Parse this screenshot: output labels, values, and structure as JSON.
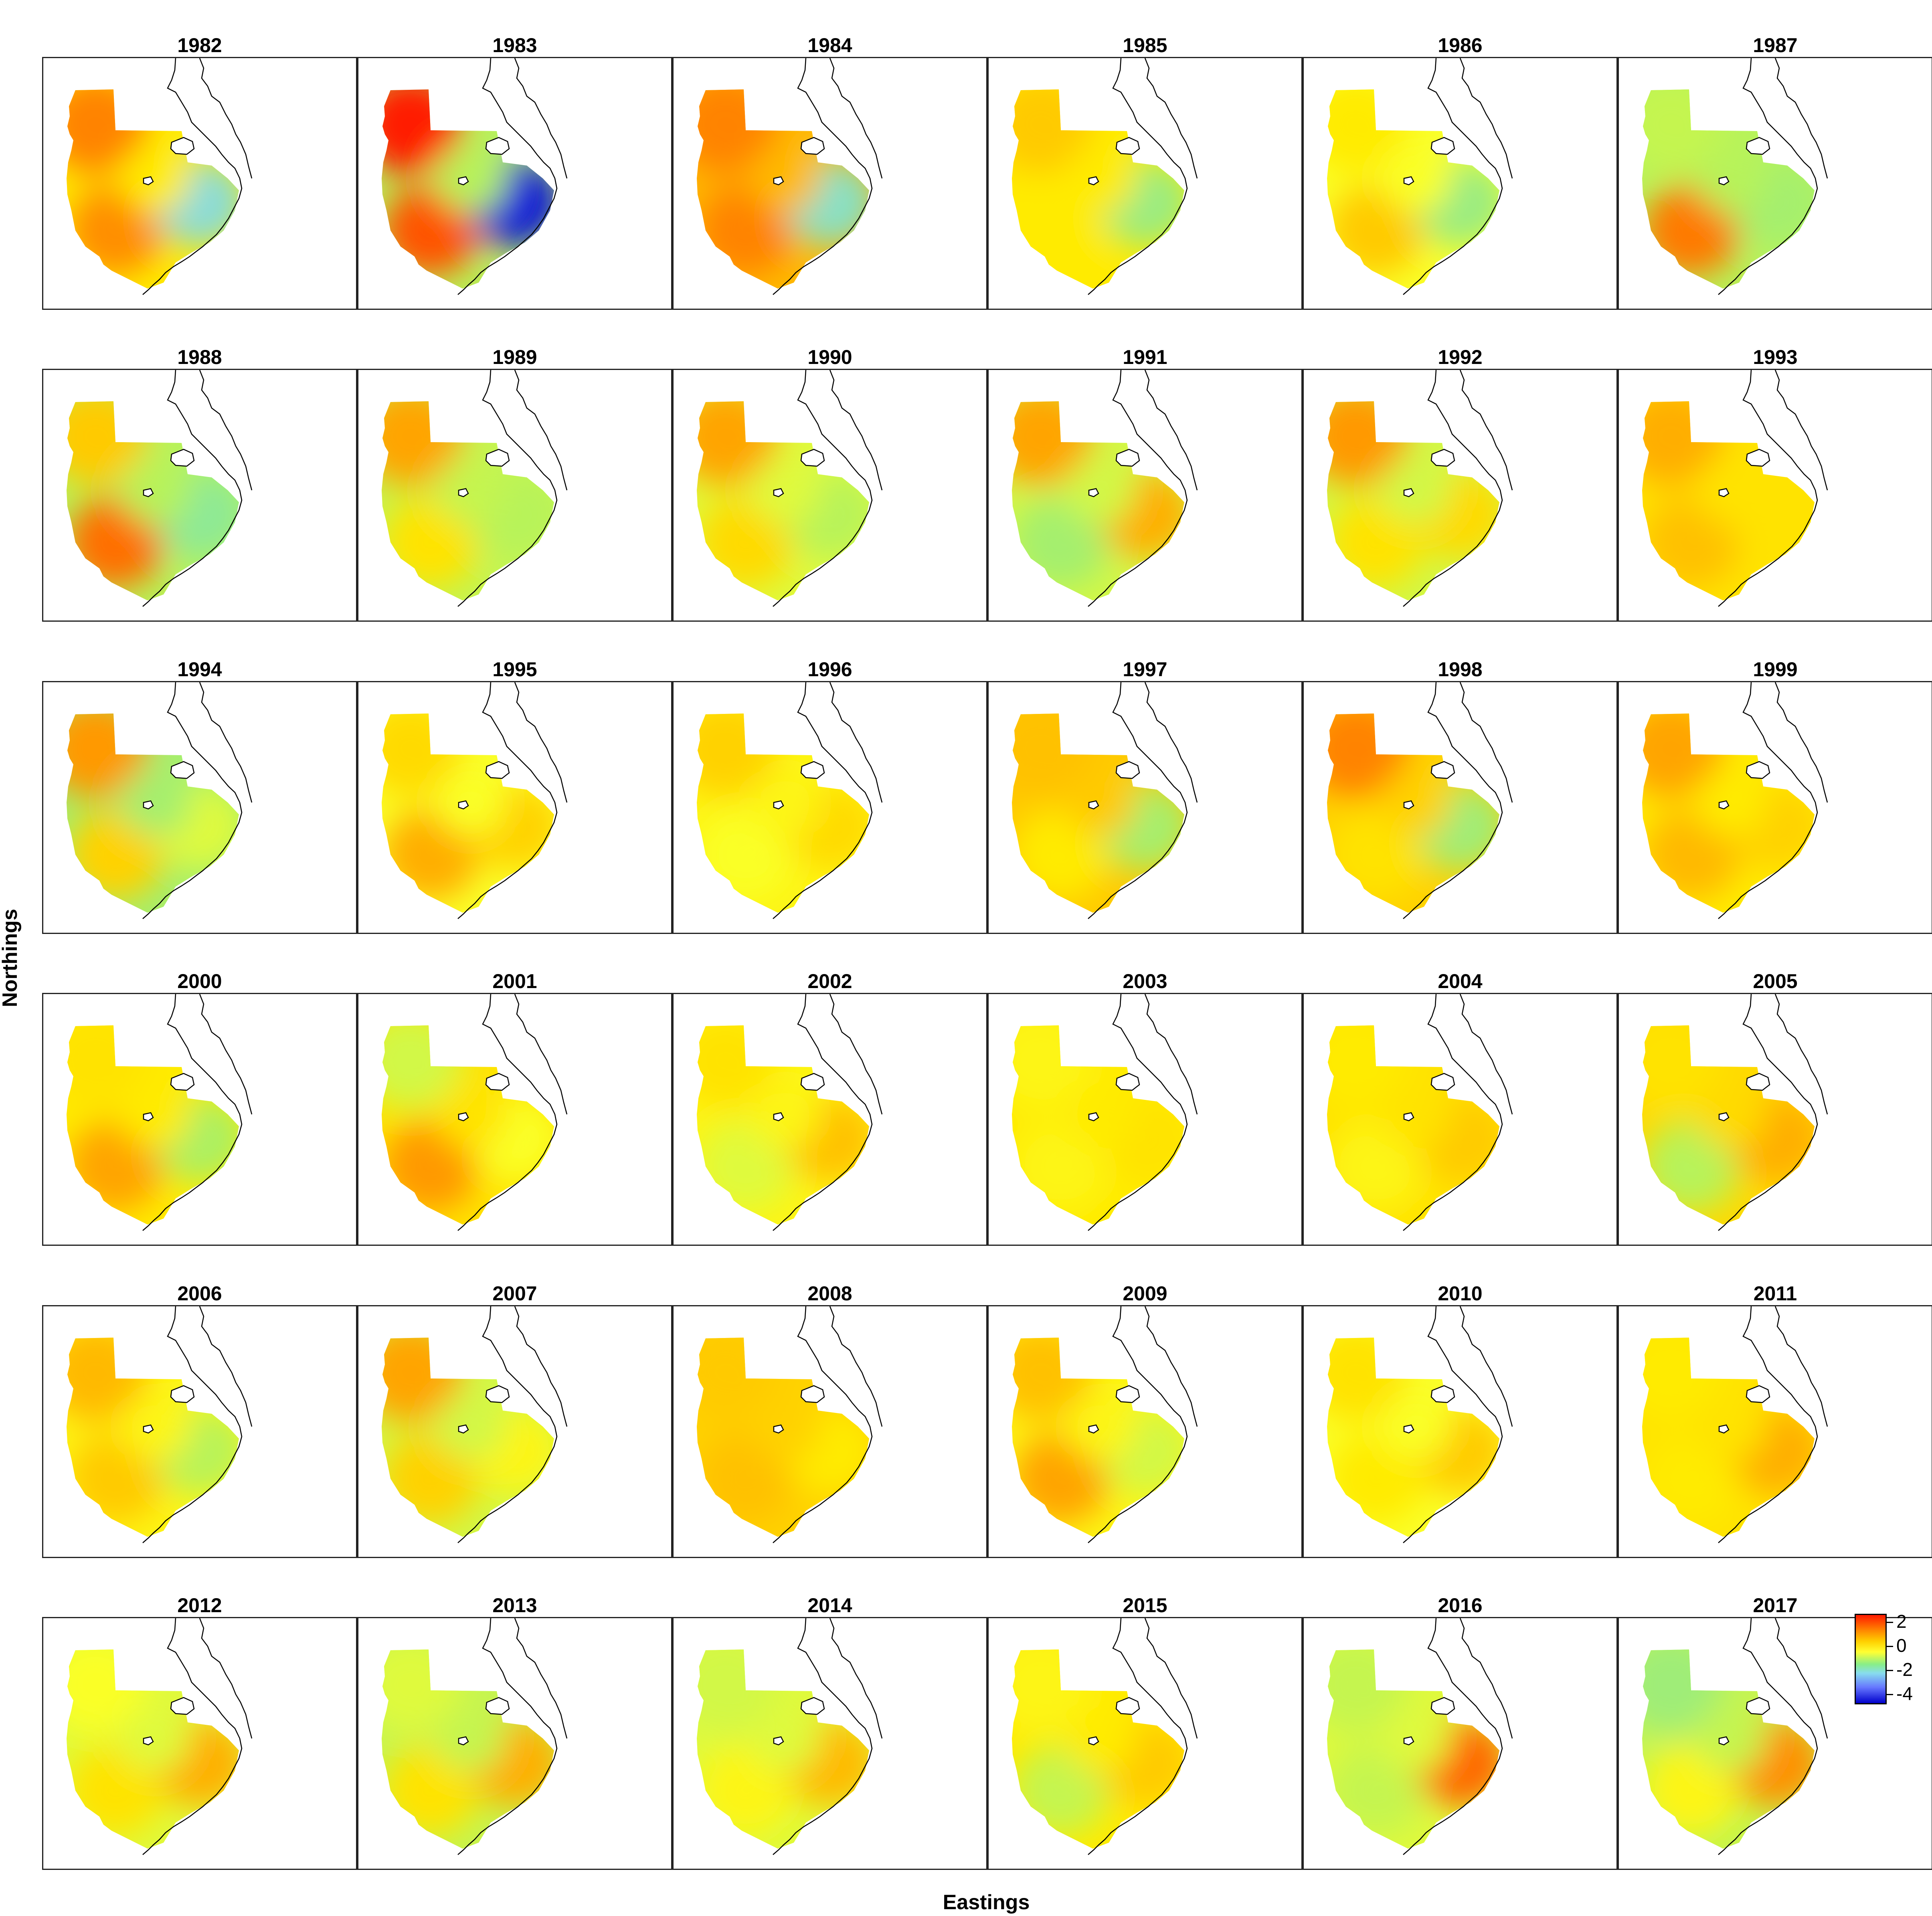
{
  "chart_data": {
    "type": "heatmap",
    "title": "",
    "xlabel": "Eastings",
    "ylabel": "Northings",
    "colorbar": {
      "ticks": [
        2,
        0,
        -2,
        -4
      ],
      "colors": [
        "#ff1a00",
        "#ff8a00",
        "#ffd000",
        "#ffff33",
        "#88ee88",
        "#88ddee",
        "#6677ff",
        "#0000cc"
      ],
      "range": [
        -5,
        2.5
      ]
    },
    "layout": {
      "rows": 6,
      "cols": 6
    },
    "panels": [
      {
        "year": "1982",
        "value_nw": 1.3,
        "value_sw": 1.2,
        "value_se": -1.8,
        "value_center": 0.2
      },
      {
        "year": "1983",
        "value_nw": 2.4,
        "value_sw": 1.8,
        "value_se": -4.5,
        "value_center": -0.5
      },
      {
        "year": "1984",
        "value_nw": 1.3,
        "value_sw": 1.3,
        "value_se": -1.6,
        "value_center": 0.8
      },
      {
        "year": "1985",
        "value_nw": 0.6,
        "value_sw": 0.2,
        "value_se": -0.9,
        "value_center": 0.2
      },
      {
        "year": "1986",
        "value_nw": 0.2,
        "value_sw": 0.6,
        "value_se": -0.9,
        "value_center": 0.0
      },
      {
        "year": "1987",
        "value_nw": -0.4,
        "value_sw": 1.4,
        "value_se": -0.7,
        "value_center": -0.5
      },
      {
        "year": "1988",
        "value_nw": 0.6,
        "value_sw": 1.5,
        "value_se": -1.1,
        "value_center": -0.5
      },
      {
        "year": "1989",
        "value_nw": 1.0,
        "value_sw": 0.3,
        "value_se": -0.5,
        "value_center": -0.4
      },
      {
        "year": "1990",
        "value_nw": 1.0,
        "value_sw": 0.4,
        "value_se": -0.5,
        "value_center": -0.2
      },
      {
        "year": "1991",
        "value_nw": 1.0,
        "value_sw": -0.7,
        "value_se": 0.9,
        "value_center": -0.3
      },
      {
        "year": "1992",
        "value_nw": 1.1,
        "value_sw": 0.3,
        "value_se": 0.4,
        "value_center": -0.3
      },
      {
        "year": "1993",
        "value_nw": 0.9,
        "value_sw": 0.7,
        "value_se": 0.3,
        "value_center": 0.3
      },
      {
        "year": "1994",
        "value_nw": 1.1,
        "value_sw": 0.5,
        "value_se": -0.2,
        "value_center": -0.7
      },
      {
        "year": "1995",
        "value_nw": 0.4,
        "value_sw": 0.9,
        "value_se": 0.5,
        "value_center": 0.0
      },
      {
        "year": "1996",
        "value_nw": 0.5,
        "value_sw": 0.0,
        "value_se": 0.4,
        "value_center": 0.1
      },
      {
        "year": "1997",
        "value_nw": 0.7,
        "value_sw": 0.2,
        "value_se": -0.7,
        "value_center": 0.6
      },
      {
        "year": "1998",
        "value_nw": 1.3,
        "value_sw": 0.3,
        "value_se": -0.8,
        "value_center": 0.5
      },
      {
        "year": "1999",
        "value_nw": 1.0,
        "value_sw": 0.8,
        "value_se": 0.5,
        "value_center": 0.2
      },
      {
        "year": "2000",
        "value_nw": 0.3,
        "value_sw": 1.0,
        "value_se": -0.6,
        "value_center": 0.2
      },
      {
        "year": "2001",
        "value_nw": -0.3,
        "value_sw": 1.1,
        "value_se": 0.0,
        "value_center": 0.3
      },
      {
        "year": "2002",
        "value_nw": 0.3,
        "value_sw": -0.2,
        "value_se": 0.7,
        "value_center": 0.1
      },
      {
        "year": "2003",
        "value_nw": 0.1,
        "value_sw": 0.1,
        "value_se": 0.3,
        "value_center": 0.2
      },
      {
        "year": "2004",
        "value_nw": 0.2,
        "value_sw": 0.1,
        "value_se": 0.6,
        "value_center": 0.3
      },
      {
        "year": "2005",
        "value_nw": 0.3,
        "value_sw": -0.5,
        "value_se": 0.9,
        "value_center": 0.4
      },
      {
        "year": "2006",
        "value_nw": 0.8,
        "value_sw": 0.6,
        "value_se": -0.5,
        "value_center": 0.1
      },
      {
        "year": "2007",
        "value_nw": 1.0,
        "value_sw": 0.5,
        "value_se": 0.1,
        "value_center": -0.3
      },
      {
        "year": "2008",
        "value_nw": 0.6,
        "value_sw": 0.7,
        "value_se": 0.2,
        "value_center": 0.5
      },
      {
        "year": "2009",
        "value_nw": 0.7,
        "value_sw": 1.0,
        "value_se": -0.3,
        "value_center": 0.1
      },
      {
        "year": "2010",
        "value_nw": 0.3,
        "value_sw": 0.2,
        "value_se": 0.6,
        "value_center": 0.0
      },
      {
        "year": "2011",
        "value_nw": 0.2,
        "value_sw": 0.2,
        "value_se": 0.9,
        "value_center": 0.3
      },
      {
        "year": "2012",
        "value_nw": 0.0,
        "value_sw": 0.3,
        "value_se": 0.9,
        "value_center": -0.2
      },
      {
        "year": "2013",
        "value_nw": -0.2,
        "value_sw": 0.3,
        "value_se": 0.9,
        "value_center": -0.4
      },
      {
        "year": "2014",
        "value_nw": -0.3,
        "value_sw": 0.1,
        "value_se": 0.8,
        "value_center": -0.2
      },
      {
        "year": "2015",
        "value_nw": 0.1,
        "value_sw": -0.4,
        "value_se": 0.6,
        "value_center": 0.2
      },
      {
        "year": "2016",
        "value_nw": -0.4,
        "value_sw": -0.4,
        "value_se": 1.6,
        "value_center": -0.2
      },
      {
        "year": "2017",
        "value_nw": -0.8,
        "value_sw": 0.1,
        "value_se": 1.2,
        "value_center": -0.4
      }
    ]
  }
}
